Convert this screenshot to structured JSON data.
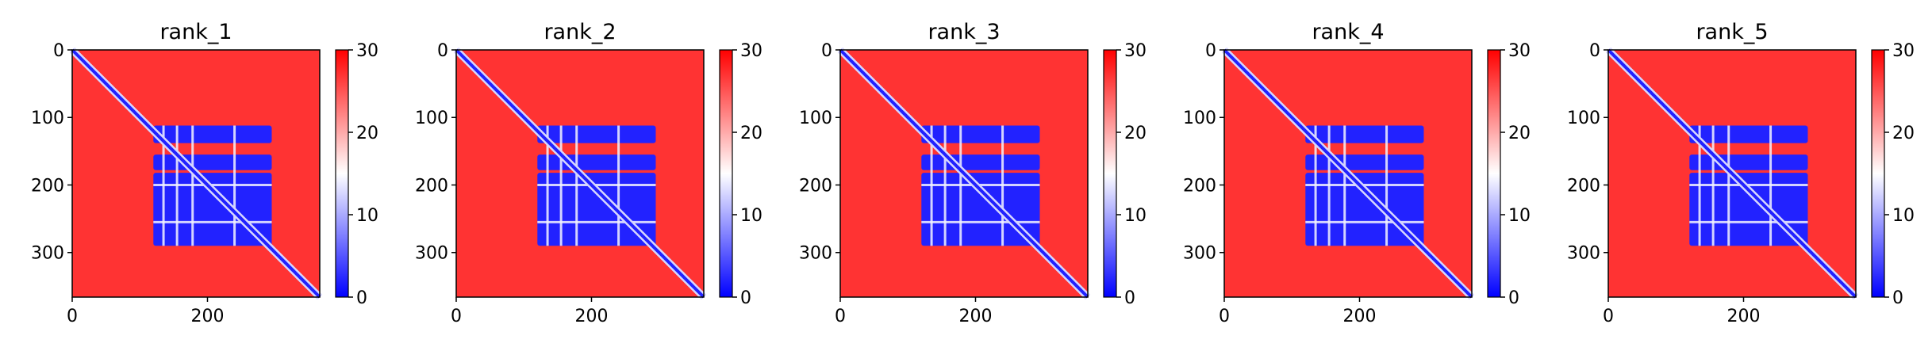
{
  "chart_data": [
    {
      "type": "heatmap",
      "title": "rank_1",
      "x": {
        "lim": [
          0,
          366
        ],
        "ticks": [
          0,
          200
        ],
        "tick_labels": [
          "0",
          "200"
        ]
      },
      "y": {
        "lim": [
          0,
          366
        ],
        "ticks": [
          0,
          100,
          200,
          300
        ],
        "tick_labels": [
          "0",
          "100",
          "200",
          "300"
        ],
        "inverted": true
      },
      "colorbar": {
        "lim": [
          0,
          30
        ],
        "ticks": [
          0,
          10,
          20,
          30
        ],
        "tick_labels": [
          "0",
          "10",
          "20",
          "30"
        ],
        "colors": [
          "#0000ff",
          "#ffffff",
          "#ff0000"
        ]
      },
      "background_value": 27,
      "diagonal_value": 2,
      "low_blocks": [
        {
          "x": [
            120,
            295
          ],
          "y": [
            112,
            138
          ],
          "value": 2
        },
        {
          "x": [
            120,
            295
          ],
          "y": [
            155,
            178
          ],
          "value": 2
        },
        {
          "x": [
            120,
            295
          ],
          "y": [
            182,
            290
          ],
          "value": 2
        }
      ],
      "gaps": {
        "cols": [
          135,
          155,
          178,
          240
        ],
        "rows": [
          200,
          255
        ]
      }
    },
    {
      "type": "heatmap",
      "title": "rank_2",
      "x": {
        "lim": [
          0,
          366
        ],
        "ticks": [
          0,
          200
        ],
        "tick_labels": [
          "0",
          "200"
        ]
      },
      "y": {
        "lim": [
          0,
          366
        ],
        "ticks": [
          0,
          100,
          200,
          300
        ],
        "tick_labels": [
          "0",
          "100",
          "200",
          "300"
        ],
        "inverted": true
      },
      "colorbar": {
        "lim": [
          0,
          30
        ],
        "ticks": [
          0,
          10,
          20,
          30
        ],
        "tick_labels": [
          "0",
          "10",
          "20",
          "30"
        ],
        "colors": [
          "#0000ff",
          "#ffffff",
          "#ff0000"
        ]
      },
      "background_value": 27,
      "diagonal_value": 2,
      "low_blocks": [
        {
          "x": [
            120,
            295
          ],
          "y": [
            112,
            138
          ],
          "value": 2
        },
        {
          "x": [
            120,
            295
          ],
          "y": [
            155,
            178
          ],
          "value": 2
        },
        {
          "x": [
            120,
            295
          ],
          "y": [
            182,
            290
          ],
          "value": 2
        }
      ],
      "gaps": {
        "cols": [
          135,
          155,
          178,
          240
        ],
        "rows": [
          200,
          255
        ]
      }
    },
    {
      "type": "heatmap",
      "title": "rank_3",
      "x": {
        "lim": [
          0,
          366
        ],
        "ticks": [
          0,
          200
        ],
        "tick_labels": [
          "0",
          "200"
        ]
      },
      "y": {
        "lim": [
          0,
          366
        ],
        "ticks": [
          0,
          100,
          200,
          300
        ],
        "tick_labels": [
          "0",
          "100",
          "200",
          "300"
        ],
        "inverted": true
      },
      "colorbar": {
        "lim": [
          0,
          30
        ],
        "ticks": [
          0,
          10,
          20,
          30
        ],
        "tick_labels": [
          "0",
          "10",
          "20",
          "30"
        ],
        "colors": [
          "#0000ff",
          "#ffffff",
          "#ff0000"
        ]
      },
      "background_value": 27,
      "diagonal_value": 2,
      "low_blocks": [
        {
          "x": [
            120,
            295
          ],
          "y": [
            112,
            138
          ],
          "value": 2
        },
        {
          "x": [
            120,
            295
          ],
          "y": [
            155,
            178
          ],
          "value": 2
        },
        {
          "x": [
            120,
            295
          ],
          "y": [
            182,
            290
          ],
          "value": 2
        }
      ],
      "gaps": {
        "cols": [
          135,
          155,
          178,
          240
        ],
        "rows": [
          200,
          255
        ]
      }
    },
    {
      "type": "heatmap",
      "title": "rank_4",
      "x": {
        "lim": [
          0,
          366
        ],
        "ticks": [
          0,
          200
        ],
        "tick_labels": [
          "0",
          "200"
        ]
      },
      "y": {
        "lim": [
          0,
          366
        ],
        "ticks": [
          0,
          100,
          200,
          300
        ],
        "tick_labels": [
          "0",
          "100",
          "200",
          "300"
        ],
        "inverted": true
      },
      "colorbar": {
        "lim": [
          0,
          30
        ],
        "ticks": [
          0,
          10,
          20,
          30
        ],
        "tick_labels": [
          "0",
          "10",
          "20",
          "30"
        ],
        "colors": [
          "#0000ff",
          "#ffffff",
          "#ff0000"
        ]
      },
      "background_value": 27,
      "diagonal_value": 2,
      "low_blocks": [
        {
          "x": [
            120,
            295
          ],
          "y": [
            112,
            138
          ],
          "value": 2
        },
        {
          "x": [
            120,
            295
          ],
          "y": [
            155,
            178
          ],
          "value": 2
        },
        {
          "x": [
            120,
            295
          ],
          "y": [
            182,
            290
          ],
          "value": 2
        }
      ],
      "gaps": {
        "cols": [
          135,
          155,
          178,
          240
        ],
        "rows": [
          200,
          255
        ]
      }
    },
    {
      "type": "heatmap",
      "title": "rank_5",
      "x": {
        "lim": [
          0,
          366
        ],
        "ticks": [
          0,
          200
        ],
        "tick_labels": [
          "0",
          "200"
        ]
      },
      "y": {
        "lim": [
          0,
          366
        ],
        "ticks": [
          0,
          100,
          200,
          300
        ],
        "tick_labels": [
          "0",
          "100",
          "200",
          "300"
        ],
        "inverted": true
      },
      "colorbar": {
        "lim": [
          0,
          30
        ],
        "ticks": [
          0,
          10,
          20,
          30
        ],
        "tick_labels": [
          "0",
          "10",
          "20",
          "30"
        ],
        "colors": [
          "#0000ff",
          "#ffffff",
          "#ff0000"
        ]
      },
      "background_value": 27,
      "diagonal_value": 2,
      "low_blocks": [
        {
          "x": [
            120,
            295
          ],
          "y": [
            112,
            138
          ],
          "value": 2
        },
        {
          "x": [
            120,
            295
          ],
          "y": [
            155,
            178
          ],
          "value": 2
        },
        {
          "x": [
            120,
            295
          ],
          "y": [
            182,
            290
          ],
          "value": 2
        }
      ],
      "gaps": {
        "cols": [
          135,
          155,
          178,
          240
        ],
        "rows": [
          200,
          255
        ]
      }
    }
  ]
}
